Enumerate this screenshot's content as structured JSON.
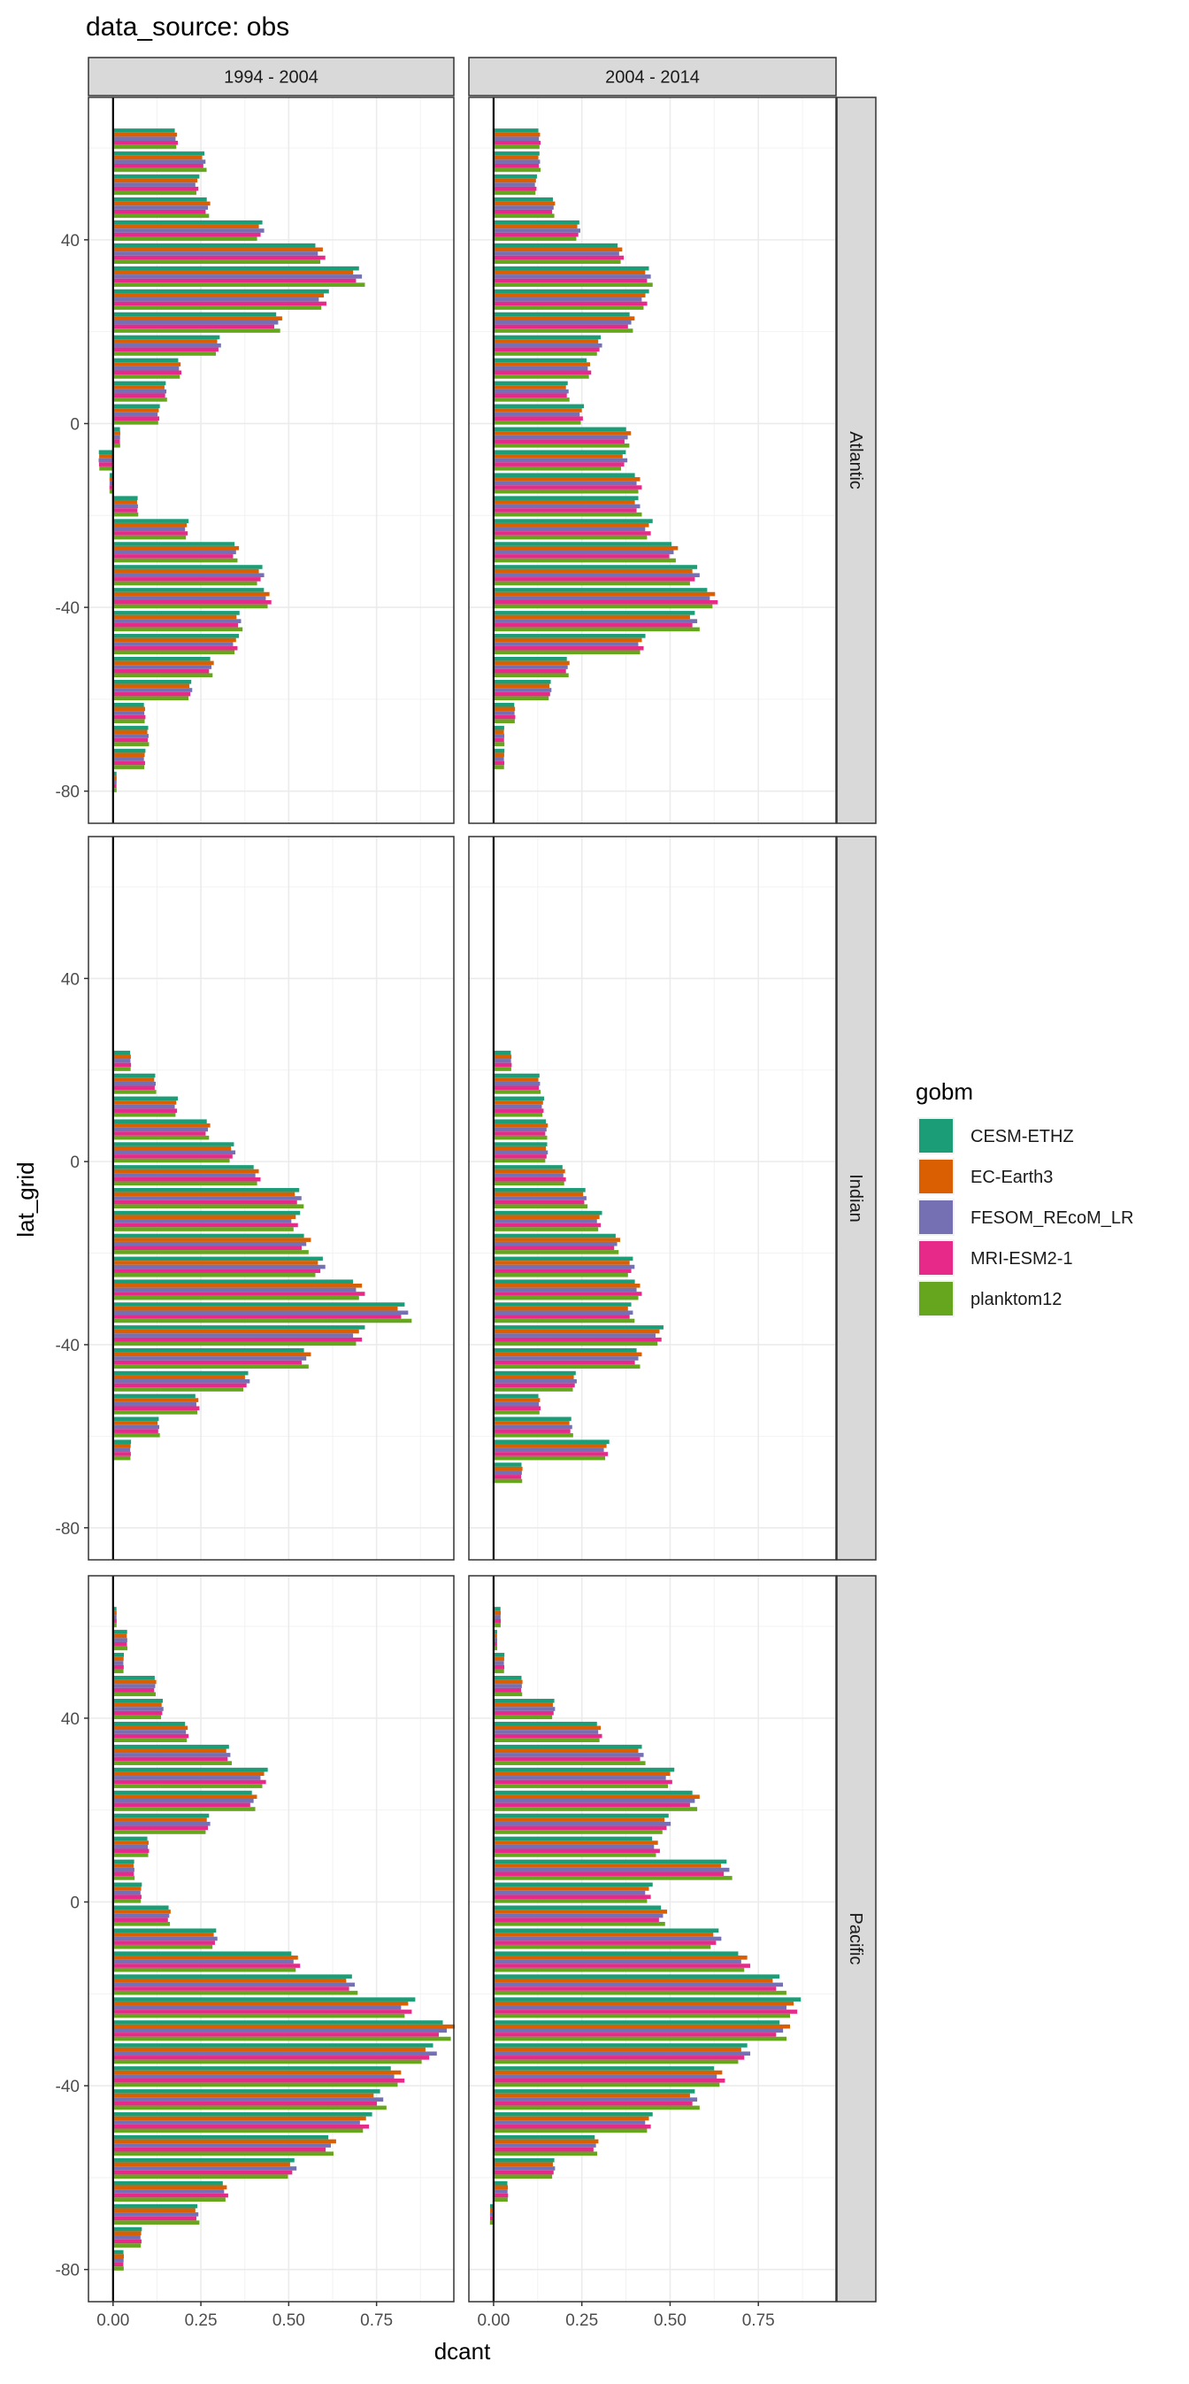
{
  "chart_data": {
    "type": "bar",
    "orientation": "horizontal",
    "facet": "grid",
    "title": "data_source: obs",
    "xlabel": "dcant",
    "ylabel": "lat_grid",
    "xlim": [
      -0.07,
      0.97
    ],
    "ylim": [
      -87,
      71
    ],
    "x_ticks": [
      0,
      0.25,
      0.5,
      0.75
    ],
    "x_tick_labels": [
      "0.00",
      "0.25",
      "0.50",
      "0.75"
    ],
    "y_ticks": [
      -80,
      -40,
      0,
      40
    ],
    "y_tick_labels": [
      "-80",
      "-40",
      "0",
      "40"
    ],
    "grid": true,
    "zero_line": true,
    "legend": {
      "title": "gobm",
      "position": "right",
      "entries": [
        "CESM-ETHZ",
        "EC-Earth3",
        "FESOM_REcoM_LR",
        "MRI-ESM2-1",
        "planktom12"
      ]
    },
    "colors": {
      "CESM-ETHZ": "#1b9e77",
      "EC-Earth3": "#d95f02",
      "FESOM_REcoM_LR": "#7570b3",
      "MRI-ESM2-1": "#e7298a",
      "planktom12": "#66a61e"
    },
    "columns": [
      "1994 - 2004",
      "2004 - 2014"
    ],
    "rows": [
      "Atlantic",
      "Indian",
      "Pacific"
    ],
    "panels": [
      {
        "row": "Atlantic",
        "column": "1994 - 2004",
        "lat": [
          62,
          57,
          52,
          47,
          42,
          37,
          32,
          27,
          22,
          17,
          12,
          7,
          2,
          -3,
          -8,
          -13,
          -18,
          -23,
          -28,
          -33,
          -38,
          -43,
          -48,
          -53,
          -58,
          -63,
          -68,
          -73,
          -78
        ],
        "values": [
          0.18,
          0.26,
          0.24,
          0.27,
          0.42,
          0.59,
          0.7,
          0.6,
          0.47,
          0.3,
          0.19,
          0.15,
          0.13,
          0.02,
          -0.04,
          -0.01,
          0.07,
          0.21,
          0.35,
          0.42,
          0.44,
          0.36,
          0.35,
          0.28,
          0.22,
          0.09,
          0.1,
          0.09,
          0.01
        ]
      },
      {
        "row": "Atlantic",
        "column": "2004 - 2014",
        "lat": [
          62,
          57,
          52,
          47,
          42,
          37,
          32,
          27,
          22,
          17,
          12,
          7,
          2,
          -3,
          -8,
          -13,
          -18,
          -23,
          -28,
          -33,
          -38,
          -43,
          -48,
          -53,
          -58,
          -63,
          -68,
          -73,
          -78
        ],
        "values": [
          0.13,
          0.13,
          0.12,
          0.17,
          0.24,
          0.36,
          0.44,
          0.43,
          0.39,
          0.3,
          0.27,
          0.21,
          0.25,
          0.38,
          0.37,
          0.41,
          0.41,
          0.44,
          0.51,
          0.57,
          0.62,
          0.57,
          0.42,
          0.21,
          0.16,
          0.06,
          0.03,
          0.03,
          null
        ]
      },
      {
        "row": "Indian",
        "column": "1994 - 2004",
        "lat": [
          22,
          17,
          12,
          7,
          2,
          -3,
          -8,
          -13,
          -18,
          -23,
          -28,
          -33,
          -38,
          -43,
          -48,
          -53,
          -58,
          -63,
          -68,
          -73,
          -78
        ],
        "values": [
          0.05,
          0.12,
          0.18,
          0.27,
          0.34,
          0.41,
          0.53,
          0.52,
          0.55,
          0.59,
          0.7,
          0.83,
          0.7,
          0.55,
          0.38,
          0.24,
          0.13,
          0.05,
          0.0,
          null,
          null
        ]
      },
      {
        "row": "Indian",
        "column": "2004 - 2014",
        "lat": [
          22,
          17,
          12,
          7,
          2,
          -3,
          -8,
          -13,
          -18,
          -23,
          -28,
          -33,
          -38,
          -43,
          -48,
          -53,
          -58,
          -63,
          -68,
          -73,
          -78
        ],
        "values": [
          0.05,
          0.13,
          0.14,
          0.15,
          0.15,
          0.2,
          0.26,
          0.3,
          0.35,
          0.39,
          0.41,
          0.39,
          0.47,
          0.41,
          0.23,
          0.13,
          0.22,
          0.32,
          0.08,
          null,
          null
        ]
      },
      {
        "row": "Pacific",
        "column": "1994 - 2004",
        "lat": [
          62,
          57,
          52,
          47,
          42,
          37,
          32,
          27,
          22,
          17,
          12,
          7,
          2,
          -3,
          -8,
          -13,
          -18,
          -23,
          -28,
          -33,
          -38,
          -43,
          -48,
          -53,
          -58,
          -63,
          -68,
          -73,
          -78
        ],
        "values": [
          0.01,
          0.04,
          0.03,
          0.12,
          0.14,
          0.21,
          0.33,
          0.43,
          0.4,
          0.27,
          0.1,
          0.06,
          0.08,
          0.16,
          0.29,
          0.52,
          0.68,
          0.84,
          0.95,
          0.9,
          0.81,
          0.76,
          0.72,
          0.62,
          0.51,
          0.32,
          0.24,
          0.08,
          0.03
        ]
      },
      {
        "row": "Pacific",
        "column": "2004 - 2014",
        "lat": [
          62,
          57,
          52,
          47,
          42,
          37,
          32,
          27,
          22,
          17,
          12,
          7,
          2,
          -3,
          -8,
          -13,
          -18,
          -23,
          -28,
          -33,
          -38,
          -43,
          -48,
          -53,
          -58,
          -63,
          -68,
          -73,
          -78
        ],
        "values": [
          0.02,
          0.01,
          0.03,
          0.08,
          0.17,
          0.3,
          0.42,
          0.5,
          0.57,
          0.49,
          0.46,
          0.66,
          0.44,
          0.48,
          0.63,
          0.71,
          0.81,
          0.85,
          0.82,
          0.71,
          0.64,
          0.57,
          0.44,
          0.29,
          0.17,
          0.04,
          -0.01,
          null,
          null
        ]
      }
    ]
  }
}
